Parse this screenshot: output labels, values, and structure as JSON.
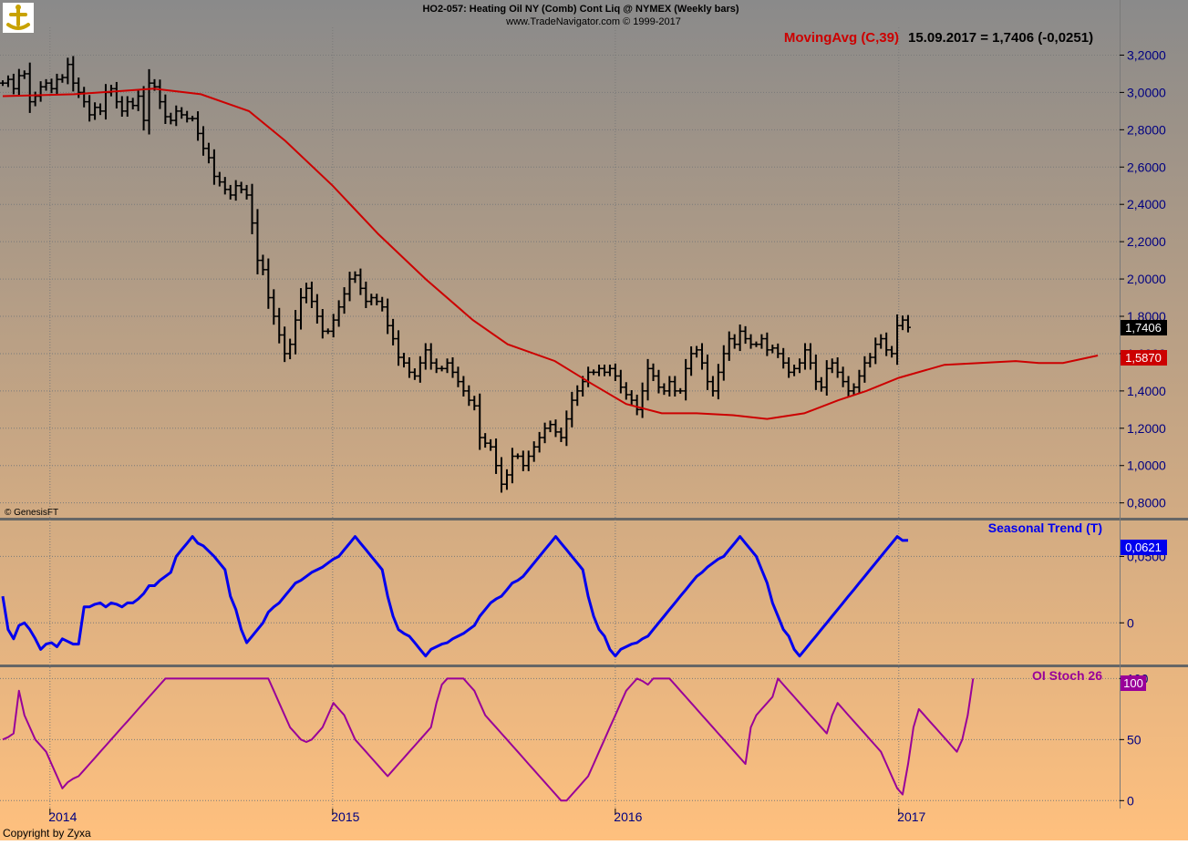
{
  "header": {
    "title": "HO2-057:  Heating Oil NY (Comb) Cont Liq @ NYMEX  (Weekly bars)",
    "subtitle": "www.TradeNavigator.com © 1999-2017",
    "indicator_label": "MovingAvg (C,39)",
    "indicator_reading": "15.09.2017 = 1,7406 (-0,0251)",
    "genesis_credit": "© GenesisFT",
    "copyright": "Copyright by Zyxa"
  },
  "colors": {
    "bars": "#000000",
    "moving_average": "#cc0000",
    "seasonal": "#0000ee",
    "oi_stoch": "#990099",
    "grid": "#7a7a7a",
    "divider": "#666666",
    "bg_top": "#8a8a8a",
    "bg_bottom": "#ffc07e"
  },
  "x_axis": {
    "type": "time",
    "start": "2013-11-01",
    "end": "2017-09-22",
    "labels": [
      {
        "date": "2014-01-01",
        "text": "2014"
      },
      {
        "date": "2015-01-01",
        "text": "2015"
      },
      {
        "date": "2016-01-01",
        "text": "2016"
      },
      {
        "date": "2017-01-01",
        "text": "2017"
      }
    ]
  },
  "chart_data": [
    {
      "type": "ohlc",
      "panel": "price",
      "ylim": [
        0.73,
        3.3
      ],
      "yticks": [
        0.8,
        1.0,
        1.2,
        1.4,
        1.6,
        1.8,
        2.0,
        2.2,
        2.4,
        2.6,
        2.8,
        3.0,
        3.2
      ],
      "ytick_labels": [
        "0,8000",
        "1,0000",
        "1,2000",
        "1,4000",
        "1,6000",
        "1,8000",
        "2,0000",
        "2,2000",
        "2,4000",
        "2,6000",
        "2,8000",
        "3,0000",
        "3,2000"
      ],
      "last_price_label": "1,7406",
      "last_price": 1.7406,
      "ma_label": "1,5870",
      "ma_value": 1.587,
      "series": [
        {
          "name": "Weekly bars",
          "x_start": "2013-11-01",
          "interval_days": 7,
          "close": [
            3.05,
            3.07,
            3.02,
            3.09,
            3.1,
            2.95,
            2.98,
            3.03,
            3.05,
            3.02,
            3.07,
            3.08,
            3.15,
            3.05,
            3.0,
            2.95,
            2.88,
            2.92,
            2.9,
            3.0,
            3.02,
            2.95,
            2.9,
            2.95,
            2.93,
            2.98,
            2.85,
            3.05,
            3.03,
            2.95,
            2.87,
            2.85,
            2.9,
            2.88,
            2.86,
            2.86,
            2.78,
            2.7,
            2.65,
            2.55,
            2.52,
            2.48,
            2.45,
            2.5,
            2.48,
            2.45,
            2.3,
            2.1,
            2.05,
            1.9,
            1.8,
            1.7,
            1.6,
            1.65,
            1.78,
            1.9,
            1.95,
            1.88,
            1.8,
            1.72,
            1.72,
            1.78,
            1.85,
            1.92,
            2.0,
            2.02,
            1.95,
            1.88,
            1.9,
            1.88,
            1.85,
            1.75,
            1.68,
            1.58,
            1.55,
            1.5,
            1.48,
            1.55,
            1.62,
            1.55,
            1.52,
            1.52,
            1.55,
            1.5,
            1.45,
            1.4,
            1.35,
            1.32,
            1.15,
            1.12,
            1.1,
            1.0,
            0.9,
            0.95,
            1.05,
            1.05,
            1.0,
            1.05,
            1.1,
            1.15,
            1.2,
            1.22,
            1.18,
            1.15,
            1.25,
            1.35,
            1.4,
            1.45,
            1.5,
            1.5,
            1.52,
            1.5,
            1.52,
            1.48,
            1.42,
            1.38,
            1.35,
            1.3,
            1.4,
            1.52,
            1.48,
            1.42,
            1.4,
            1.45,
            1.4,
            1.4,
            1.52,
            1.6,
            1.62,
            1.55,
            1.45,
            1.4,
            1.5,
            1.6,
            1.68,
            1.65,
            1.72,
            1.68,
            1.65,
            1.65,
            1.68,
            1.62,
            1.63,
            1.6,
            1.55,
            1.5,
            1.52,
            1.55,
            1.62,
            1.55,
            1.45,
            1.42,
            1.52,
            1.55,
            1.5,
            1.45,
            1.4,
            1.42,
            1.48,
            1.55,
            1.58,
            1.65,
            1.68,
            1.62,
            1.6,
            1.75,
            1.78,
            1.7406
          ]
        }
      ]
    },
    {
      "type": "line",
      "panel": "price",
      "series": [
        {
          "name": "MovingAvg (C,39)",
          "x": [
            "2013-11-01",
            "2014-02-01",
            "2014-05-15",
            "2014-07-15",
            "2014-09-15",
            "2014-11-01",
            "2015-01-01",
            "2015-03-01",
            "2015-05-01",
            "2015-07-01",
            "2015-08-15",
            "2015-10-15",
            "2015-12-01",
            "2016-01-15",
            "2016-03-01",
            "2016-04-15",
            "2016-06-01",
            "2016-07-15",
            "2016-09-01",
            "2016-10-15",
            "2016-11-20",
            "2017-01-01",
            "2017-03-01",
            "2017-04-15",
            "2017-06-01",
            "2017-07-01",
            "2017-08-01",
            "2017-09-15"
          ],
          "y": [
            2.98,
            2.99,
            3.02,
            2.99,
            2.9,
            2.74,
            2.5,
            2.24,
            2.0,
            1.78,
            1.65,
            1.56,
            1.44,
            1.33,
            1.28,
            1.28,
            1.27,
            1.25,
            1.28,
            1.35,
            1.4,
            1.47,
            1.54,
            1.55,
            1.56,
            1.55,
            1.55,
            1.59
          ]
        }
      ]
    },
    {
      "type": "line",
      "panel": "seasonal",
      "title": "Seasonal Trend (T)",
      "value_label": "0,0621",
      "value": 0.0621,
      "ylim": [
        -0.03,
        0.075
      ],
      "yticks": [
        0,
        0.05
      ],
      "ytick_labels": [
        "0",
        "0,0500"
      ],
      "series": [
        {
          "name": "Seasonal Trend (T)",
          "x_start": "2013-11-01",
          "interval_days": 7,
          "y": [
            0.02,
            -0.005,
            -0.012,
            -0.002,
            0,
            -0.005,
            -0.012,
            -0.02,
            -0.016,
            -0.015,
            -0.018,
            -0.012,
            -0.014,
            -0.016,
            -0.016,
            0.012,
            0.012,
            0.014,
            0.015,
            0.012,
            0.015,
            0.014,
            0.012,
            0.015,
            0.015,
            0.018,
            0.022,
            0.028,
            0.028,
            0.032,
            0.035,
            0.038,
            0.05,
            0.055,
            0.06,
            0.065,
            0.06,
            0.058,
            0.054,
            0.05,
            0.045,
            0.04,
            0.02,
            0.01,
            -0.005,
            -0.015,
            -0.01,
            -0.005,
            0,
            0.008,
            0.012,
            0.015,
            0.02,
            0.025,
            0.03,
            0.032,
            0.035,
            0.038,
            0.04,
            0.042,
            0.045,
            0.048,
            0.05,
            0.055,
            0.06,
            0.065,
            0.06,
            0.055,
            0.05,
            0.045,
            0.04,
            0.02,
            0.005,
            -0.005,
            -0.008,
            -0.01,
            -0.015,
            -0.02,
            -0.025,
            -0.02,
            -0.018,
            -0.016,
            -0.015,
            -0.012,
            -0.01,
            -0.008,
            -0.005,
            -0.002,
            0.005,
            0.01,
            0.015,
            0.018,
            0.02,
            0.025,
            0.03,
            0.032,
            0.035,
            0.04,
            0.045,
            0.05,
            0.055,
            0.06,
            0.065,
            0.06,
            0.055,
            0.05,
            0.045,
            0.04,
            0.02,
            0.005,
            -0.005,
            -0.01,
            -0.02,
            -0.025,
            -0.02,
            -0.018,
            -0.016,
            -0.015,
            -0.012,
            -0.01,
            -0.005,
            0,
            0.005,
            0.01,
            0.015,
            0.02,
            0.025,
            0.03,
            0.035,
            0.038,
            0.042,
            0.045,
            0.048,
            0.05,
            0.055,
            0.06,
            0.065,
            0.06,
            0.055,
            0.05,
            0.04,
            0.03,
            0.015,
            0.005,
            -0.005,
            -0.01,
            -0.02,
            -0.025,
            -0.02,
            -0.015,
            -0.01,
            -0.005,
            0,
            0.005,
            0.01,
            0.015,
            0.02,
            0.025,
            0.03,
            0.035,
            0.04,
            0.045,
            0.05,
            0.055,
            0.06,
            0.065,
            0.062,
            0.0621
          ]
        }
      ]
    },
    {
      "type": "line",
      "panel": "oi_stoch",
      "title": "OI Stoch 26",
      "value_label": "100",
      "value": 100,
      "ylim": [
        -5,
        107
      ],
      "yticks": [
        0,
        50,
        100
      ],
      "ytick_labels": [
        "0",
        "50",
        "100"
      ],
      "series": [
        {
          "name": "OI Stoch 26",
          "x_start": "2013-11-01",
          "interval_days": 7,
          "y": [
            50,
            52,
            55,
            90,
            70,
            60,
            50,
            45,
            40,
            30,
            20,
            10,
            15,
            18,
            20,
            25,
            30,
            35,
            40,
            45,
            50,
            55,
            60,
            65,
            70,
            75,
            80,
            85,
            90,
            95,
            100,
            100,
            100,
            100,
            100,
            100,
            100,
            100,
            100,
            100,
            100,
            100,
            100,
            100,
            100,
            100,
            100,
            100,
            100,
            100,
            90,
            80,
            70,
            60,
            55,
            50,
            48,
            50,
            55,
            60,
            70,
            80,
            75,
            70,
            60,
            50,
            45,
            40,
            35,
            30,
            25,
            20,
            25,
            30,
            35,
            40,
            45,
            50,
            55,
            60,
            80,
            95,
            100,
            100,
            100,
            100,
            95,
            90,
            80,
            70,
            65,
            60,
            55,
            50,
            45,
            40,
            35,
            30,
            25,
            20,
            15,
            10,
            5,
            0,
            0,
            5,
            10,
            15,
            20,
            30,
            40,
            50,
            60,
            70,
            80,
            90,
            95,
            100,
            98,
            95,
            100,
            100,
            100,
            100,
            95,
            90,
            85,
            80,
            75,
            70,
            65,
            60,
            55,
            50,
            45,
            40,
            35,
            30,
            60,
            70,
            75,
            80,
            85,
            100,
            95,
            90,
            85,
            80,
            75,
            70,
            65,
            60,
            55,
            70,
            80,
            75,
            70,
            65,
            60,
            55,
            50,
            45,
            40,
            30,
            20,
            10,
            5,
            30,
            60,
            75,
            70,
            65,
            60,
            55,
            50,
            45,
            40,
            50,
            70,
            100
          ]
        }
      ]
    }
  ]
}
